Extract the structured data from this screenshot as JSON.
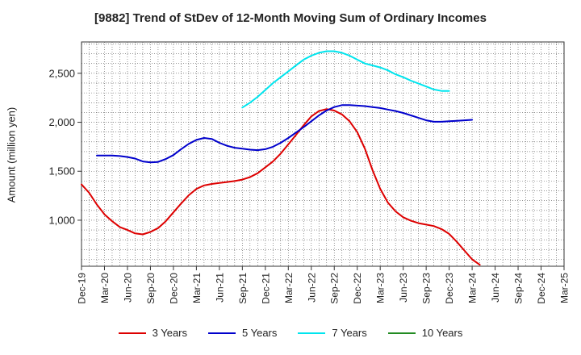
{
  "chart_data": {
    "type": "line",
    "title": "[9882]  Trend of StDev of 12-Month Moving Sum of Ordinary Incomes",
    "xlabel": "",
    "ylabel": "Amount (million yen)",
    "ylim": [
      530,
      2820
    ],
    "yticks": [
      1000,
      1500,
      2000,
      2500
    ],
    "ytick_labels": [
      "1,000",
      "1,500",
      "2,000",
      "2,500"
    ],
    "x_categories": [
      "Dec-19",
      "Mar-20",
      "Jun-20",
      "Sep-20",
      "Dec-20",
      "Mar-21",
      "Jun-21",
      "Sep-21",
      "Dec-21",
      "Mar-22",
      "Jun-22",
      "Sep-22",
      "Dec-22",
      "Mar-23",
      "Jun-23",
      "Sep-23",
      "Dec-23",
      "Mar-24",
      "Jun-24",
      "Sep-24",
      "Dec-24",
      "Mar-25"
    ],
    "grid": true,
    "series": [
      {
        "name": "3 Years",
        "color": "#dd0000",
        "points": [
          [
            0,
            1365
          ],
          [
            1,
            1280
          ],
          [
            2,
            1160
          ],
          [
            3,
            1060
          ],
          [
            4,
            990
          ],
          [
            5,
            930
          ],
          [
            6,
            900
          ],
          [
            7,
            865
          ],
          [
            8,
            855
          ],
          [
            9,
            880
          ],
          [
            10,
            920
          ],
          [
            11,
            990
          ],
          [
            12,
            1080
          ],
          [
            13,
            1170
          ],
          [
            14,
            1255
          ],
          [
            15,
            1320
          ],
          [
            16,
            1355
          ],
          [
            17,
            1370
          ],
          [
            18,
            1380
          ],
          [
            19,
            1390
          ],
          [
            20,
            1400
          ],
          [
            21,
            1415
          ],
          [
            22,
            1440
          ],
          [
            23,
            1480
          ],
          [
            24,
            1540
          ],
          [
            25,
            1600
          ],
          [
            26,
            1680
          ],
          [
            27,
            1775
          ],
          [
            28,
            1870
          ],
          [
            29,
            1970
          ],
          [
            30,
            2060
          ],
          [
            31,
            2115
          ],
          [
            32,
            2135
          ],
          [
            33,
            2120
          ],
          [
            34,
            2080
          ],
          [
            35,
            2010
          ],
          [
            36,
            1900
          ],
          [
            37,
            1730
          ],
          [
            38,
            1510
          ],
          [
            39,
            1320
          ],
          [
            40,
            1180
          ],
          [
            41,
            1090
          ],
          [
            42,
            1030
          ],
          [
            43,
            995
          ],
          [
            44,
            970
          ],
          [
            45,
            955
          ],
          [
            46,
            940
          ],
          [
            47,
            910
          ],
          [
            48,
            860
          ],
          [
            49,
            780
          ],
          [
            50,
            690
          ],
          [
            51,
            600
          ],
          [
            52,
            545
          ]
        ]
      },
      {
        "name": "5 Years",
        "color": "#0000cc",
        "points": [
          [
            2,
            1660
          ],
          [
            3,
            1660
          ],
          [
            4,
            1660
          ],
          [
            5,
            1655
          ],
          [
            6,
            1645
          ],
          [
            7,
            1630
          ],
          [
            8,
            1600
          ],
          [
            9,
            1590
          ],
          [
            10,
            1595
          ],
          [
            11,
            1625
          ],
          [
            12,
            1665
          ],
          [
            13,
            1725
          ],
          [
            14,
            1780
          ],
          [
            15,
            1820
          ],
          [
            16,
            1840
          ],
          [
            17,
            1830
          ],
          [
            18,
            1790
          ],
          [
            19,
            1760
          ],
          [
            20,
            1740
          ],
          [
            21,
            1730
          ],
          [
            22,
            1720
          ],
          [
            23,
            1715
          ],
          [
            24,
            1725
          ],
          [
            25,
            1750
          ],
          [
            26,
            1790
          ],
          [
            27,
            1840
          ],
          [
            28,
            1895
          ],
          [
            29,
            1950
          ],
          [
            30,
            2010
          ],
          [
            31,
            2070
          ],
          [
            32,
            2120
          ],
          [
            33,
            2155
          ],
          [
            34,
            2175
          ],
          [
            35,
            2175
          ],
          [
            36,
            2170
          ],
          [
            37,
            2165
          ],
          [
            38,
            2155
          ],
          [
            39,
            2145
          ],
          [
            40,
            2130
          ],
          [
            41,
            2115
          ],
          [
            42,
            2095
          ],
          [
            43,
            2070
          ],
          [
            44,
            2045
          ],
          [
            45,
            2020
          ],
          [
            46,
            2005
          ],
          [
            47,
            2005
          ],
          [
            48,
            2010
          ],
          [
            49,
            2015
          ],
          [
            50,
            2020
          ],
          [
            51,
            2025
          ]
        ]
      },
      {
        "name": "7 Years",
        "color": "#00e5ee",
        "points": [
          [
            21,
            2150
          ],
          [
            22,
            2200
          ],
          [
            23,
            2260
          ],
          [
            24,
            2330
          ],
          [
            25,
            2400
          ],
          [
            26,
            2460
          ],
          [
            27,
            2520
          ],
          [
            28,
            2580
          ],
          [
            29,
            2640
          ],
          [
            30,
            2680
          ],
          [
            31,
            2710
          ],
          [
            32,
            2725
          ],
          [
            33,
            2725
          ],
          [
            34,
            2710
          ],
          [
            35,
            2680
          ],
          [
            36,
            2640
          ],
          [
            37,
            2600
          ],
          [
            38,
            2580
          ],
          [
            39,
            2560
          ],
          [
            40,
            2530
          ],
          [
            41,
            2490
          ],
          [
            42,
            2460
          ],
          [
            43,
            2425
          ],
          [
            44,
            2395
          ],
          [
            45,
            2365
          ],
          [
            46,
            2335
          ],
          [
            47,
            2320
          ],
          [
            48,
            2320
          ]
        ]
      },
      {
        "name": "10 Years",
        "color": "#228b22",
        "points": []
      }
    ]
  }
}
